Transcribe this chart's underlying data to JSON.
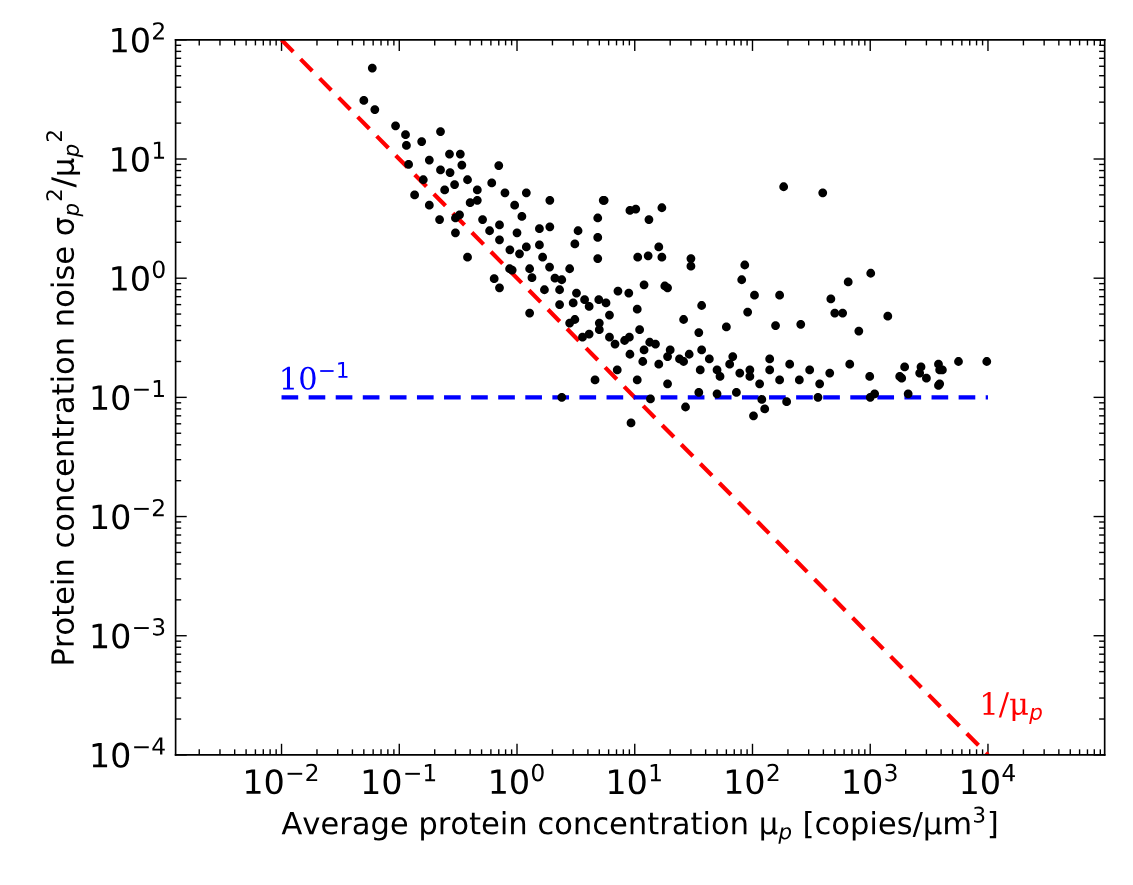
{
  "chart_data": {
    "type": "scatter",
    "xlabel": "Average protein concentration μ$_{p}$ [copies/μm$^{3}$]",
    "ylabel": "Protein concentration noise σ$_{p}$$^{2}$/μ$_{p}$$^{2}$",
    "log": "xy",
    "grid": false,
    "legend": false,
    "xlim": [
      0.00126,
      98000
    ],
    "ylim": [
      0.0001,
      100
    ],
    "xticks": [
      {
        "value": 0.01,
        "label": "10$^{−2}$"
      },
      {
        "value": 0.1,
        "label": "10$^{−1}$"
      },
      {
        "value": 1,
        "label": "10$^{0}$"
      },
      {
        "value": 10,
        "label": "10$^{1}$"
      },
      {
        "value": 100,
        "label": "10$^{2}$"
      },
      {
        "value": 1000,
        "label": "10$^{3}$"
      },
      {
        "value": 10000,
        "label": "10$^{4}$"
      }
    ],
    "yticks": [
      {
        "value": 0.0001,
        "label": "10$^{−4}$"
      },
      {
        "value": 0.001,
        "label": "10$^{−3}$"
      },
      {
        "value": 0.01,
        "label": "10$^{−2}$"
      },
      {
        "value": 0.1,
        "label": "10$^{−1}$"
      },
      {
        "value": 1,
        "label": "10$^{0}$"
      },
      {
        "value": 10,
        "label": "10$^{1}$"
      },
      {
        "value": 100,
        "label": "10$^{2}$"
      }
    ],
    "series": [
      {
        "color": "#000000",
        "marker": "circle",
        "x": [
          0.059,
          0.05,
          0.062,
          0.093,
          0.113,
          0.115,
          0.155,
          0.224,
          0.18,
          0.224,
          0.267,
          0.295,
          0.38,
          0.243,
          0.18,
          0.325,
          0.46,
          0.585,
          0.71,
          0.955,
          1.05,
          0.865,
          1.28,
          1.55,
          1.71,
          2.1,
          2.3,
          2.8,
          3.1,
          3.75,
          4.1,
          5.0,
          6.1,
          6.8,
          8.2,
          9.1,
          11,
          12,
          15,
          16,
          20,
          24,
          29,
          36,
          43,
          53,
          64,
          78,
          95,
          115,
          140,
          170,
          207,
          250,
          306,
          372,
          453,
          670,
          990,
          1780,
          1960,
          2630,
          3890,
          3890,
          5620,
          9770,
          0.3,
          0.38,
          0.33,
          1.2,
          1.9,
          4.85,
          17,
          10.6,
          9.1,
          5.5,
          4.85,
          18,
          30,
          4.95,
          86,
          184,
          395,
          81,
          104,
          170,
          463,
          1010,
          650,
          500,
          583,
          1410,
          91,
          257,
          800,
          157,
          3800,
          4100,
          2700,
          1850,
          3000,
          3800,
          2100,
          102,
          127,
          195,
          360,
          1000,
          1090,
          9.3,
          2.4,
          13.6,
          27,
          4.6,
          0.64,
          0.71,
          1.28,
          5.4,
          10.2,
          17,
          13.2,
          16,
          30,
          13,
          3.3,
          3.1,
          4.85,
          7.2,
          8.9,
          37,
          12,
          0.7,
          0.27,
          0.34,
          0.46,
          0.61,
          0.79,
          0.4,
          0.51,
          0.71,
          1.0,
          1.1,
          1.55,
          1.9,
          0.87,
          1.2,
          1.65,
          0.91,
          1.34,
          1.89,
          2.4,
          2.3,
          3.2,
          3.0,
          4.1,
          2.8,
          5.0,
          3.6,
          6.1,
          9.0,
          13.4,
          11.7,
          19,
          26,
          37,
          50,
          68,
          95,
          140,
          7.1,
          10.5,
          19,
          35,
          50,
          73,
          120,
          60,
          35,
          26,
          19,
          10.5,
          5.7,
          0.12,
          0.16,
          0.135,
          0.22,
          0.3
        ],
        "values": [
          58,
          31,
          26,
          19,
          16,
          13,
          14,
          17,
          9.8,
          8.1,
          11,
          6.1,
          6.7,
          5.5,
          4.1,
          3.4,
          4.5,
          2.5,
          2.1,
          4.1,
          1.6,
          1.2,
          1.2,
          1.9,
          0.8,
          1.0,
          0.6,
          1.2,
          0.45,
          0.66,
          0.34,
          0.37,
          0.49,
          0.28,
          0.3,
          0.23,
          0.37,
          0.25,
          0.28,
          0.19,
          0.25,
          0.21,
          0.23,
          0.17,
          0.21,
          0.15,
          0.19,
          0.16,
          0.17,
          0.13,
          0.21,
          0.14,
          0.19,
          0.14,
          0.17,
          0.13,
          0.16,
          0.19,
          0.15,
          0.15,
          0.18,
          0.16,
          0.17,
          0.13,
          0.2,
          0.2,
          2.4,
          1.5,
          11,
          5.2,
          4.5,
          2.2,
          1.5,
          1.5,
          3.7,
          4.5,
          3.2,
          0.86,
          1.26,
          0.66,
          1.29,
          5.85,
          5.2,
          0.97,
          0.72,
          0.72,
          0.67,
          1.1,
          0.93,
          0.51,
          0.51,
          0.48,
          0.52,
          0.41,
          0.36,
          0.4,
          0.19,
          0.17,
          0.18,
          0.145,
          0.145,
          0.126,
          0.107,
          0.07,
          0.08,
          0.092,
          0.1,
          0.1,
          0.107,
          0.061,
          0.1,
          0.097,
          0.083,
          0.14,
          0.99,
          0.83,
          0.51,
          4.5,
          3.8,
          3.9,
          3.1,
          1.83,
          1.46,
          1.54,
          2.5,
          1.94,
          1.46,
          0.78,
          0.75,
          0.59,
          0.88,
          8.8,
          7.7,
          8.9,
          5.5,
          6.3,
          5.2,
          4.3,
          3.1,
          2.8,
          2.4,
          3.3,
          2.6,
          2.7,
          1.73,
          1.83,
          1.5,
          1.17,
          1.01,
          1.24,
          0.97,
          0.8,
          0.75,
          0.62,
          0.58,
          0.42,
          0.42,
          0.32,
          0.32,
          0.32,
          0.29,
          0.2,
          0.22,
          0.2,
          0.25,
          0.17,
          0.22,
          0.15,
          0.17,
          0.17,
          0.14,
          0.13,
          0.11,
          0.107,
          0.11,
          0.096,
          0.39,
          0.35,
          0.45,
          0.83,
          0.55,
          0.62,
          9,
          6.7,
          5,
          3.1,
          3.2
        ]
      },
      {
        "type": "line",
        "name": "1/μ$_{p}$",
        "color": "#ff0000",
        "line_style": "dashed",
        "marker": "none",
        "x": [
          0.01,
          10000
        ],
        "values": [
          100,
          0.0001
        ]
      },
      {
        "type": "line",
        "name": "10$^{−1}$",
        "color": "#0000ff",
        "line_style": "dashed",
        "marker": "none",
        "x": [
          0.01,
          10000
        ],
        "values": [
          0.1,
          0.1
        ]
      }
    ]
  }
}
